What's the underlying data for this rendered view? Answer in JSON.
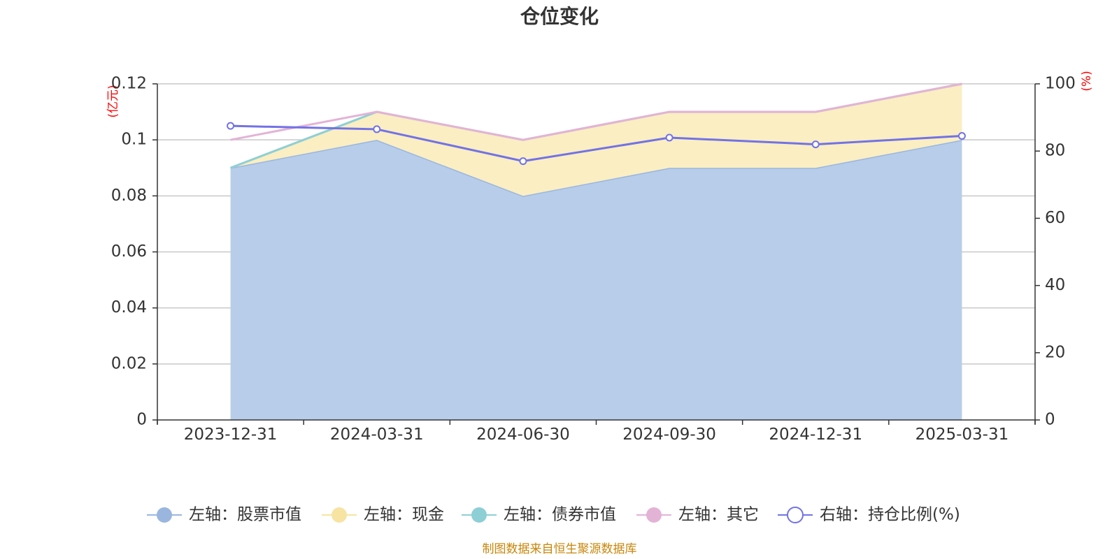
{
  "chart_data": {
    "type": "area",
    "title": "仓位变化",
    "categories": [
      "2023-12-31",
      "2024-03-31",
      "2024-06-30",
      "2024-09-30",
      "2024-12-31",
      "2025-03-31"
    ],
    "left_axis": {
      "unit": "(亿元)",
      "ylim": [
        0,
        0.12
      ],
      "ticks": [
        "0",
        "0.02",
        "0.04",
        "0.06",
        "0.08",
        "0.1",
        "0.12"
      ]
    },
    "right_axis": {
      "unit": "(%)",
      "ylim": [
        0,
        100
      ],
      "ticks": [
        "0",
        "20",
        "40",
        "60",
        "80",
        "100"
      ]
    },
    "series": [
      {
        "name": "左轴：股票市值",
        "axis": "left",
        "kind": "area-stack",
        "color": "#9ab6df",
        "fill": "#b8cdea",
        "values": [
          0.09,
          0.1,
          0.08,
          0.09,
          0.09,
          0.1
        ]
      },
      {
        "name": "左轴：现金",
        "axis": "left",
        "kind": "area-stack",
        "color": "#f7e4a2",
        "fill": "#faeec2",
        "values": [
          0.0,
          0.01,
          0.02,
          0.02,
          0.02,
          0.02
        ]
      },
      {
        "name": "左轴：债券市值",
        "axis": "left",
        "kind": "area-stack",
        "color": "#8ecfd6",
        "fill": "#b5e0e4",
        "values": [
          0,
          0,
          0,
          0,
          0,
          0
        ]
      },
      {
        "name": "左轴：其它",
        "axis": "left",
        "kind": "line",
        "color": "#e3b3d6",
        "values": [
          0.1,
          0.11,
          0.1,
          0.11,
          0.11,
          0.12
        ]
      },
      {
        "name": "右轴：持仓比例(%)",
        "axis": "right",
        "kind": "line-markers",
        "color": "#7272e6",
        "values": [
          87.5,
          86.5,
          77.0,
          84.0,
          82.0,
          84.5
        ]
      }
    ],
    "legend_position": "bottom",
    "grid": true
  },
  "source_note": "制图数据来自恒生聚源数据库"
}
